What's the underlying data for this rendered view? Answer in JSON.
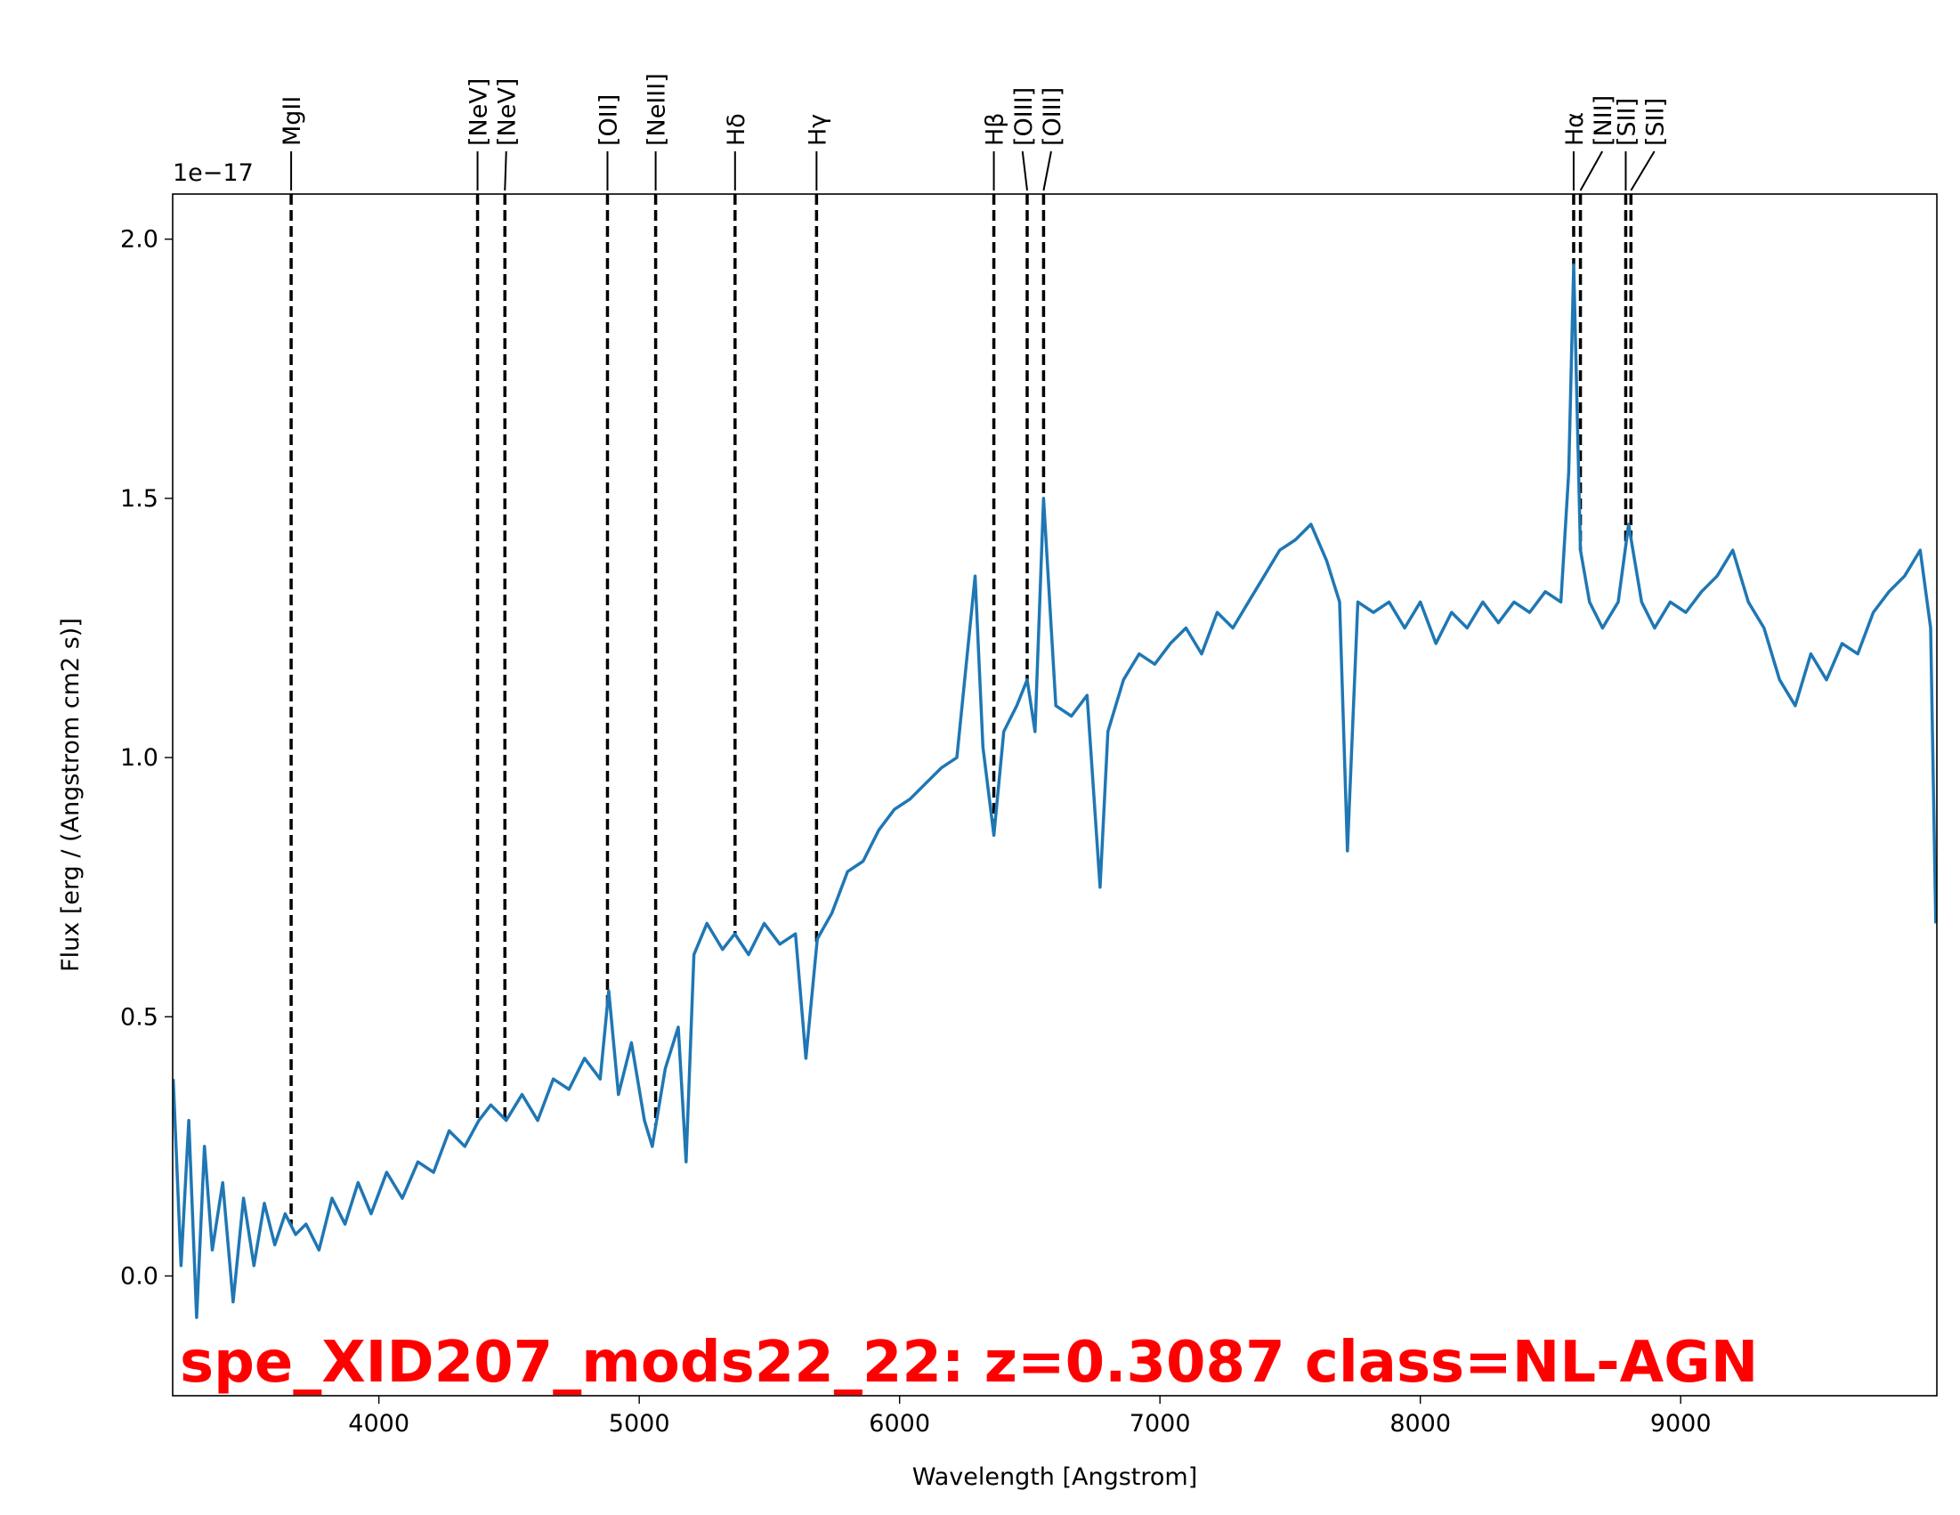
{
  "chart_data": {
    "type": "line",
    "annotation": "spe_XID207_mods22_22: z=0.3087 class=NL-AGN",
    "x_label": "Wavelength [Angstrom]",
    "y_label": "Flux [erg / (Angstrom cm2 s)]",
    "y_offset_label": "1e−17",
    "color": "#1f77b4",
    "xlim": [
      3208,
      9984
    ],
    "ylim": [
      -0.231,
      2.087
    ],
    "xticks": [
      4000,
      5000,
      6000,
      7000,
      8000,
      9000
    ],
    "yticks": [
      {
        "value": 0,
        "label": "0.0"
      },
      {
        "value": 0.5,
        "label": "0.5"
      },
      {
        "value": 1,
        "label": "1.0"
      },
      {
        "value": 1.5,
        "label": "1.5"
      },
      {
        "value": 2,
        "label": "2.0"
      }
    ],
    "lines": [
      {
        "name": "MgII",
        "wavelength": 3663
      },
      {
        "name": "[NeV]",
        "wavelength": 4379
      },
      {
        "name": "[NeV]",
        "wavelength": 4484
      },
      {
        "name": "[OII]",
        "wavelength": 4878
      },
      {
        "name": "[NeIII]",
        "wavelength": 5063
      },
      {
        "name": "Hδ",
        "wavelength": 5368
      },
      {
        "name": "Hγ",
        "wavelength": 5681
      },
      {
        "name": "Hβ",
        "wavelength": 6362
      },
      {
        "name": "[OIII]",
        "wavelength": 6490
      },
      {
        "name": "[OIII]",
        "wavelength": 6553
      },
      {
        "name": "Hα",
        "wavelength": 8589
      },
      {
        "name": "[NII]",
        "wavelength": 8615
      },
      {
        "name": "[SII]",
        "wavelength": 8789
      },
      {
        "name": "[SII]",
        "wavelength": 8809
      }
    ],
    "x": [
      3210,
      3240,
      3270,
      3300,
      3330,
      3360,
      3400,
      3440,
      3480,
      3520,
      3560,
      3600,
      3640,
      3680,
      3720,
      3770,
      3820,
      3870,
      3920,
      3970,
      4030,
      4090,
      4150,
      4210,
      4270,
      4330,
      4384,
      4430,
      4489,
      4550,
      4610,
      4670,
      4730,
      4790,
      4850,
      4883,
      4920,
      4970,
      5020,
      5050,
      5100,
      5150,
      5180,
      5210,
      5260,
      5320,
      5367,
      5420,
      5480,
      5540,
      5600,
      5640,
      5684,
      5740,
      5800,
      5860,
      5920,
      5980,
      6040,
      6100,
      6160,
      6220,
      6290,
      6320,
      6362,
      6400,
      6450,
      6490,
      6520,
      6553,
      6600,
      6660,
      6720,
      6770,
      6800,
      6860,
      6920,
      6980,
      7040,
      7100,
      7160,
      7220,
      7280,
      7340,
      7400,
      7460,
      7520,
      7580,
      7640,
      7690,
      7720,
      7760,
      7820,
      7880,
      7940,
      8000,
      8060,
      8120,
      8180,
      8240,
      8300,
      8360,
      8420,
      8480,
      8540,
      8570,
      8589,
      8615,
      8650,
      8700,
      8760,
      8800,
      8850,
      8900,
      8960,
      9020,
      9080,
      9140,
      9200,
      9260,
      9320,
      9380,
      9440,
      9500,
      9560,
      9620,
      9680,
      9740,
      9800,
      9860,
      9920,
      9960,
      9980
    ],
    "values": [
      0.38,
      0.02,
      0.3,
      -0.08,
      0.25,
      0.05,
      0.18,
      -0.05,
      0.15,
      0.02,
      0.14,
      0.06,
      0.12,
      0.08,
      0.1,
      0.05,
      0.15,
      0.1,
      0.18,
      0.12,
      0.2,
      0.15,
      0.22,
      0.2,
      0.28,
      0.25,
      0.3,
      0.33,
      0.3,
      0.35,
      0.3,
      0.38,
      0.36,
      0.42,
      0.38,
      0.55,
      0.35,
      0.45,
      0.3,
      0.25,
      0.4,
      0.48,
      0.22,
      0.62,
      0.68,
      0.63,
      0.66,
      0.62,
      0.68,
      0.64,
      0.66,
      0.42,
      0.65,
      0.7,
      0.78,
      0.8,
      0.86,
      0.9,
      0.92,
      0.95,
      0.98,
      1.0,
      1.35,
      1.02,
      0.85,
      1.05,
      1.1,
      1.15,
      1.05,
      1.5,
      1.1,
      1.08,
      1.12,
      0.75,
      1.05,
      1.15,
      1.2,
      1.18,
      1.22,
      1.25,
      1.2,
      1.28,
      1.25,
      1.3,
      1.35,
      1.4,
      1.42,
      1.45,
      1.38,
      1.3,
      0.82,
      1.3,
      1.28,
      1.3,
      1.25,
      1.3,
      1.22,
      1.28,
      1.25,
      1.3,
      1.26,
      1.3,
      1.28,
      1.32,
      1.3,
      1.55,
      1.95,
      1.4,
      1.3,
      1.25,
      1.3,
      1.45,
      1.3,
      1.25,
      1.3,
      1.28,
      1.32,
      1.35,
      1.4,
      1.3,
      1.25,
      1.15,
      1.1,
      1.2,
      1.15,
      1.22,
      1.2,
      1.28,
      1.32,
      1.35,
      1.4,
      1.25,
      0.68
    ]
  }
}
